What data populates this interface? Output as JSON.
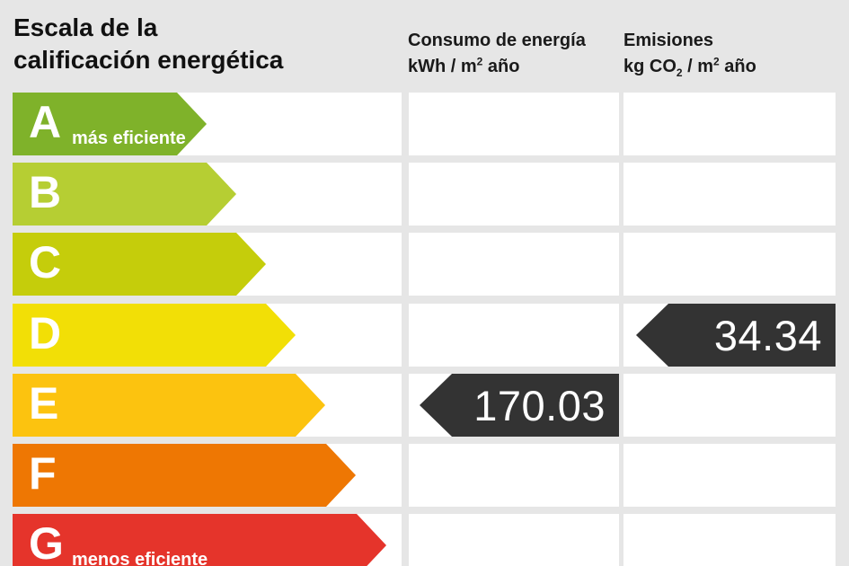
{
  "title": {
    "line1": "Escala de la",
    "line2": "calificación energética"
  },
  "columns": {
    "consumption": {
      "title": "Consumo de energía",
      "unit_pre": "kWh / m",
      "unit_sup": "2",
      "unit_post": " año"
    },
    "emissions": {
      "title": "Emisiones",
      "unit_pre": "kg CO",
      "unit_sub": "2",
      "unit_mid": " / m",
      "unit_sup": "2",
      "unit_post": " año"
    }
  },
  "scale": {
    "rows": [
      {
        "letter": "A",
        "label": "más eficiente",
        "color": "#7fb22a",
        "arrow_width": 216
      },
      {
        "letter": "B",
        "label": "",
        "color": "#b6ce33",
        "arrow_width": 249
      },
      {
        "letter": "C",
        "label": "",
        "color": "#c5cd0b",
        "arrow_width": 282
      },
      {
        "letter": "D",
        "label": "",
        "color": "#f2df06",
        "arrow_width": 315
      },
      {
        "letter": "E",
        "label": "",
        "color": "#fcc30f",
        "arrow_width": 348
      },
      {
        "letter": "F",
        "label": "",
        "color": "#ee7703",
        "arrow_width": 382
      },
      {
        "letter": "G",
        "label": "menos eficiente",
        "color": "#e5342b",
        "arrow_width": 416
      }
    ]
  },
  "indicators": {
    "consumption": {
      "rating": "E",
      "value": "170.03"
    },
    "emissions": {
      "rating": "D",
      "value": "34.34"
    }
  },
  "colors": {
    "background": "#e6e6e6",
    "cell": "#ffffff",
    "indicator_arrow": "#333333",
    "text": "#111111"
  },
  "chart_data": {
    "type": "bar",
    "title": "Escala de la calificación energética",
    "categories": [
      "A",
      "B",
      "C",
      "D",
      "E",
      "F",
      "G"
    ],
    "category_labels": {
      "A": "más eficiente",
      "G": "menos eficiente"
    },
    "category_colors": {
      "A": "#7fb22a",
      "B": "#b6ce33",
      "C": "#c5cd0b",
      "D": "#f2df06",
      "E": "#fcc30f",
      "F": "#ee7703",
      "G": "#e5342b"
    },
    "bar_widths_relative": [
      216,
      249,
      282,
      315,
      348,
      382,
      416
    ],
    "series": [
      {
        "name": "Consumo de energía kWh/m2 año",
        "rating": "E",
        "value": 170.03
      },
      {
        "name": "Emisiones kg CO2/m2 año",
        "rating": "D",
        "value": 34.34
      }
    ],
    "legend_position": "top",
    "grid": false
  }
}
